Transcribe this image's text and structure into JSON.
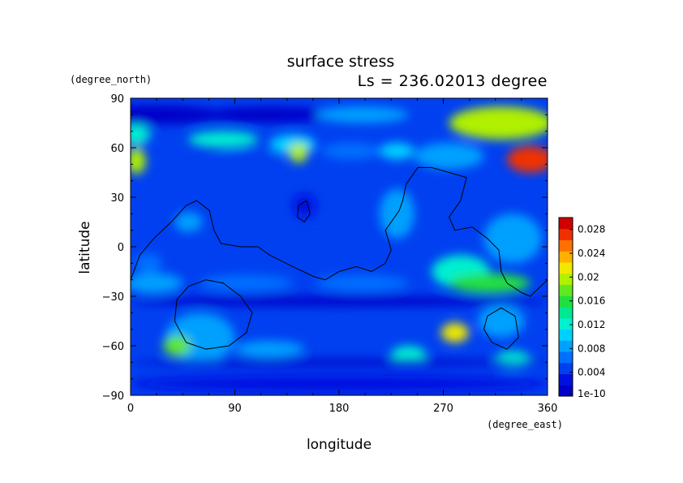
{
  "chart_data": {
    "type": "heatmap",
    "title": "surface stress",
    "subtitle": "Ls = 236.02013 degree",
    "xlabel": "longitude",
    "ylabel": "latitude",
    "x_unit": "(degree_east)",
    "y_unit": "(degree_north)",
    "xlim": [
      0,
      360
    ],
    "ylim": [
      -90,
      90
    ],
    "x_ticks": [
      "0",
      "90",
      "180",
      "270",
      "360"
    ],
    "y_ticks": [
      "90",
      "60",
      "30",
      "0",
      "−30",
      "−60",
      "−90"
    ],
    "colorbar": {
      "labels": [
        "0.028",
        "0.024",
        "0.02",
        "0.016",
        "0.012",
        "0.008",
        "0.004",
        "1e-10"
      ],
      "min": 0,
      "max": 0.03,
      "colors": [
        "#0000c8",
        "#0010e0",
        "#0040f0",
        "#0070ff",
        "#00a0ff",
        "#00d0ff",
        "#00f0d0",
        "#00e890",
        "#20e040",
        "#60e820",
        "#b0f000",
        "#f0e800",
        "#ffb000",
        "#ff7000",
        "#f03000",
        "#d00000"
      ]
    },
    "background_level": 0.004,
    "blobs": [
      {
        "lon": 20,
        "lat": 80,
        "rx": 60,
        "ry": 6,
        "v": 0.001
      },
      {
        "lon": 120,
        "lat": 80,
        "rx": 60,
        "ry": 5,
        "v": 0.0005
      },
      {
        "lon": 320,
        "lat": 75,
        "rx": 45,
        "ry": 10,
        "v": 0.02
      },
      {
        "lon": 200,
        "lat": 80,
        "rx": 40,
        "ry": 5,
        "v": 0.008
      },
      {
        "lon": 80,
        "lat": 65,
        "rx": 30,
        "ry": 5,
        "v": 0.012
      },
      {
        "lon": 140,
        "lat": 62,
        "rx": 20,
        "ry": 6,
        "v": 0.011
      },
      {
        "lon": 5,
        "lat": 68,
        "rx": 12,
        "ry": 6,
        "v": 0.012
      },
      {
        "lon": 145,
        "lat": 57,
        "rx": 8,
        "ry": 6,
        "v": 0.02
      },
      {
        "lon": 5,
        "lat": 52,
        "rx": 8,
        "ry": 8,
        "v": 0.02
      },
      {
        "lon": 345,
        "lat": 53,
        "rx": 20,
        "ry": 8,
        "v": 0.028
      },
      {
        "lon": 275,
        "lat": 55,
        "rx": 30,
        "ry": 8,
        "v": 0.009
      },
      {
        "lon": 190,
        "lat": 58,
        "rx": 25,
        "ry": 5,
        "v": 0.007
      },
      {
        "lon": 230,
        "lat": 58,
        "rx": 15,
        "ry": 5,
        "v": 0.011
      },
      {
        "lon": 100,
        "lat": 50,
        "rx": 30,
        "ry": 8,
        "v": 0.005
      },
      {
        "lon": 150,
        "lat": 25,
        "rx": 10,
        "ry": 7,
        "v": 0.002
      },
      {
        "lon": 230,
        "lat": 20,
        "rx": 15,
        "ry": 15,
        "v": 0.008
      },
      {
        "lon": 50,
        "lat": 15,
        "rx": 12,
        "ry": 6,
        "v": 0.008
      },
      {
        "lon": 330,
        "lat": 5,
        "rx": 25,
        "ry": 15,
        "v": 0.008
      },
      {
        "lon": 15,
        "lat": -10,
        "rx": 12,
        "ry": 6,
        "v": 0.007
      },
      {
        "lon": 150,
        "lat": -5,
        "rx": 40,
        "ry": 10,
        "v": 0.004
      },
      {
        "lon": 285,
        "lat": -15,
        "rx": 25,
        "ry": 10,
        "v": 0.012
      },
      {
        "lon": 310,
        "lat": -22,
        "rx": 35,
        "ry": 6,
        "v": 0.016
      },
      {
        "lon": 20,
        "lat": -22,
        "rx": 25,
        "ry": 6,
        "v": 0.009
      },
      {
        "lon": 100,
        "lat": -22,
        "rx": 40,
        "ry": 5,
        "v": 0.007
      },
      {
        "lon": 200,
        "lat": -22,
        "rx": 40,
        "ry": 5,
        "v": 0.006
      },
      {
        "lon": 180,
        "lat": -33,
        "rx": 180,
        "ry": 3,
        "v": 0.0005
      },
      {
        "lon": 60,
        "lat": -55,
        "rx": 30,
        "ry": 15,
        "v": 0.009
      },
      {
        "lon": 40,
        "lat": -60,
        "rx": 12,
        "ry": 6,
        "v": 0.017
      },
      {
        "lon": 280,
        "lat": -52,
        "rx": 12,
        "ry": 6,
        "v": 0.022
      },
      {
        "lon": 320,
        "lat": -45,
        "rx": 20,
        "ry": 10,
        "v": 0.009
      },
      {
        "lon": 240,
        "lat": -65,
        "rx": 15,
        "ry": 5,
        "v": 0.012
      },
      {
        "lon": 120,
        "lat": -62,
        "rx": 30,
        "ry": 5,
        "v": 0.009
      },
      {
        "lon": 330,
        "lat": -68,
        "rx": 15,
        "ry": 5,
        "v": 0.012
      },
      {
        "lon": 180,
        "lat": -83,
        "rx": 180,
        "ry": 5,
        "v": 0.003
      },
      {
        "lon": 180,
        "lat": -70,
        "rx": 180,
        "ry": 2,
        "v": 0.0003
      }
    ],
    "contours": [
      [
        [
          0,
          -20
        ],
        [
          8,
          -5
        ],
        [
          20,
          5
        ],
        [
          35,
          15
        ],
        [
          48,
          25
        ],
        [
          57,
          28
        ],
        [
          68,
          22
        ],
        [
          72,
          10
        ],
        [
          78,
          2
        ],
        [
          95,
          0
        ],
        [
          110,
          0
        ],
        [
          120,
          -5
        ],
        [
          140,
          -12
        ],
        [
          158,
          -18
        ],
        [
          168,
          -20
        ],
        [
          180,
          -15
        ],
        [
          195,
          -12
        ],
        [
          208,
          -15
        ],
        [
          220,
          -10
        ],
        [
          225,
          -2
        ],
        [
          220,
          10
        ],
        [
          232,
          22
        ],
        [
          235,
          28
        ],
        [
          238,
          38
        ],
        [
          248,
          48
        ],
        [
          260,
          48
        ],
        [
          275,
          45
        ],
        [
          290,
          42
        ],
        [
          285,
          28
        ],
        [
          275,
          18
        ],
        [
          280,
          10
        ],
        [
          295,
          12
        ],
        [
          308,
          5
        ],
        [
          318,
          -2
        ],
        [
          320,
          -15
        ],
        [
          325,
          -22
        ],
        [
          338,
          -28
        ],
        [
          345,
          -30
        ],
        [
          360,
          -20
        ]
      ],
      [
        [
          145,
          25
        ],
        [
          152,
          28
        ],
        [
          155,
          20
        ],
        [
          150,
          15
        ],
        [
          144,
          18
        ],
        [
          145,
          25
        ]
      ],
      [
        [
          65,
          -20
        ],
        [
          80,
          -22
        ],
        [
          95,
          -30
        ],
        [
          105,
          -40
        ],
        [
          100,
          -52
        ],
        [
          85,
          -60
        ],
        [
          65,
          -62
        ],
        [
          48,
          -58
        ],
        [
          38,
          -45
        ],
        [
          40,
          -32
        ],
        [
          50,
          -24
        ],
        [
          65,
          -20
        ]
      ],
      [
        [
          320,
          -37
        ],
        [
          332,
          -42
        ],
        [
          335,
          -55
        ],
        [
          325,
          -62
        ],
        [
          312,
          -58
        ],
        [
          305,
          -50
        ],
        [
          308,
          -42
        ],
        [
          320,
          -37
        ]
      ]
    ]
  }
}
